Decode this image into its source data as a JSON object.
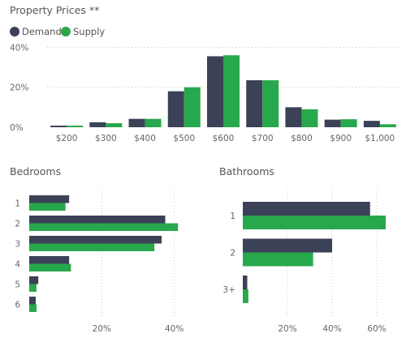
{
  "colors": {
    "demand": "#3b4257",
    "supply": "#28a84c",
    "grid": "#c9c9c9"
  },
  "chart_data": [
    {
      "type": "bar",
      "title": "Property Prices **",
      "legend": [
        "Demand",
        "Supply"
      ],
      "legend_position": "top-left",
      "categories": [
        "$200",
        "$300",
        "$400",
        "$500",
        "$600",
        "$700",
        "$800",
        "$900",
        "$1,000"
      ],
      "series": [
        {
          "name": "Demand",
          "values": [
            0.8,
            2.5,
            4.2,
            18.0,
            35.5,
            23.5,
            10.0,
            3.8,
            3.2
          ]
        },
        {
          "name": "Supply",
          "values": [
            0.8,
            2.0,
            4.2,
            20.0,
            36.0,
            23.5,
            9.0,
            4.0,
            1.5
          ]
        }
      ],
      "ylim": [
        0,
        45
      ],
      "yticks": [
        0,
        20,
        40
      ],
      "ytick_labels": [
        "0%",
        "20%",
        "40%"
      ],
      "grid": true
    },
    {
      "type": "bar",
      "orientation": "horizontal",
      "title": "Bedrooms",
      "categories": [
        "1",
        "2",
        "3",
        "4",
        "5",
        "6"
      ],
      "series": [
        {
          "name": "Demand",
          "values": [
            11,
            37.5,
            36.5,
            11,
            2.5,
            1.8
          ]
        },
        {
          "name": "Supply",
          "values": [
            10,
            41,
            34.5,
            11.5,
            2,
            2
          ]
        }
      ],
      "xlim": [
        0,
        45
      ],
      "xticks": [
        20,
        40
      ],
      "xtick_labels": [
        "20%",
        "40%"
      ],
      "grid": true
    },
    {
      "type": "bar",
      "orientation": "horizontal",
      "title": "Bathrooms",
      "categories": [
        "1",
        "2",
        "3+"
      ],
      "series": [
        {
          "name": "Demand",
          "values": [
            57,
            40,
            2
          ]
        },
        {
          "name": "Supply",
          "values": [
            64,
            31.5,
            2.5
          ]
        }
      ],
      "xlim": [
        0,
        68
      ],
      "xticks": [
        20,
        40,
        60
      ],
      "xtick_labels": [
        "20%",
        "40%",
        "60%"
      ],
      "grid": true
    }
  ]
}
